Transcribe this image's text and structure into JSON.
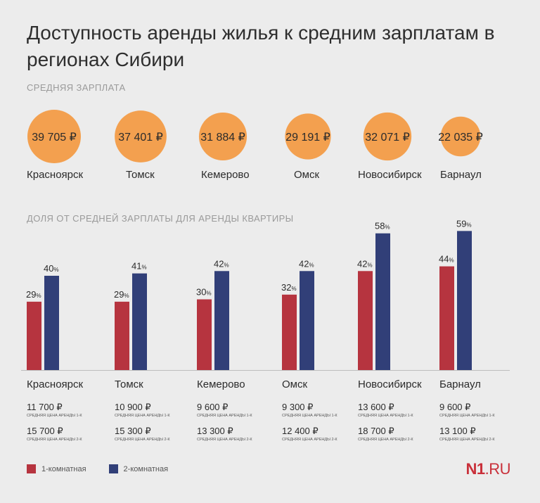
{
  "title": "Доступность аренды жилья к средним зарплатам в регионах Сибири",
  "salary_section_label": "СРЕДНЯЯ ЗАРПЛАТА",
  "share_section_label": "ДОЛЯ ОТ СРЕДНЕЙ ЗАРПЛАТЫ ДЛЯ АРЕНДЫ КВАРТИРЫ",
  "rent_1k_caption": "СРЕДНЯЯ ЦЕНА АРЕНДЫ 1-К",
  "rent_2k_caption": "СРЕДНЯЯ ЦЕНА АРЕНДЫ 2-К",
  "legend": {
    "one_room": "1-комнатная",
    "two_room": "2-комнатная"
  },
  "logo": {
    "brand": "N1",
    "suffix": ".RU"
  },
  "colors": {
    "background": "#ececec",
    "salary_circle": "#f3a04f",
    "one_room": "#b6343f",
    "two_room": "#313f78"
  },
  "chart_data": [
    {
      "type": "bubble",
      "label": "Средняя зарплата",
      "categories": [
        "Красноярск",
        "Томск",
        "Кемерово",
        "Омск",
        "Новосибирск",
        "Барнаул"
      ],
      "values": [
        39705,
        37401,
        31884,
        29191,
        32071,
        22035
      ],
      "value_labels": [
        "39 705 ₽",
        "37 401 ₽",
        "31 884 ₽",
        "29 191 ₽",
        "32 071 ₽",
        "22 035 ₽"
      ]
    },
    {
      "type": "bar",
      "label": "Доля от средней зарплаты для аренды квартиры",
      "categories": [
        "Красноярск",
        "Томск",
        "Кемерово",
        "Омск",
        "Новосибирск",
        "Барнаул"
      ],
      "series": [
        {
          "name": "1-комнатная",
          "values": [
            29,
            29,
            30,
            32,
            42,
            44
          ]
        },
        {
          "name": "2-комнатная",
          "values": [
            40,
            41,
            42,
            42,
            58,
            59
          ]
        }
      ],
      "unit": "%",
      "ylim": [
        0,
        65
      ],
      "rent_1k": [
        "11 700 ₽",
        "10 900 ₽",
        "9 600 ₽",
        "9 300 ₽",
        "13 600 ₽",
        "9 600 ₽"
      ],
      "rent_2k": [
        "15 700 ₽",
        "15 300 ₽",
        "13 300 ₽",
        "12 400 ₽",
        "18 700 ₽",
        "13 100 ₽"
      ]
    }
  ]
}
